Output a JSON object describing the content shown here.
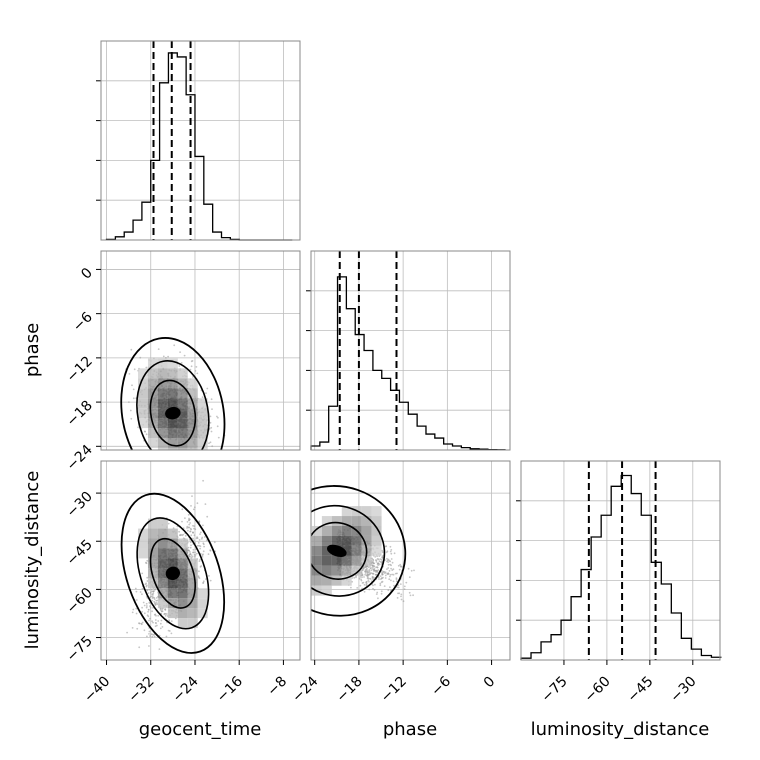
{
  "chart_data": [
    {
      "type": "histogram",
      "panel": "geocent_time",
      "x_ticks": [
        "−40",
        "−32",
        "−24",
        "−16",
        "−8"
      ],
      "x_tick_values": [
        -40,
        -32,
        -24,
        -16,
        -8
      ],
      "xlim": [
        -41,
        -5
      ],
      "quantile_lines": [
        -31.5,
        -28.2,
        -24.8
      ],
      "bin_edges": [
        -40,
        -38.4,
        -36.8,
        -35.2,
        -33.6,
        -32,
        -30.4,
        -28.8,
        -27.2,
        -25.6,
        -24,
        -22.4,
        -20.8,
        -19.2,
        -17.6,
        -16,
        -14.4,
        -12.8,
        -11.2,
        -9.6,
        -8,
        -6.4
      ],
      "counts": [
        0.3,
        1.6,
        4,
        10,
        19,
        40,
        79,
        94,
        92,
        73,
        42,
        18,
        4,
        1.2,
        0.3,
        0,
        0,
        0,
        0,
        0,
        0
      ],
      "ylim": [
        0,
        100
      ],
      "grid": true
    },
    {
      "type": "histogram",
      "panel": "phase",
      "x_ticks": [
        "−24",
        "−18",
        "−12",
        "−6",
        "0"
      ],
      "x_tick_values": [
        -24,
        -18,
        -12,
        -6,
        0
      ],
      "xlim": [
        -24.5,
        2.5
      ],
      "quantile_lines": [
        -20.6,
        -18.0,
        -12.9
      ],
      "bin_edges": [
        -24.5,
        -23.3,
        -22.1,
        -20.9,
        -19.7,
        -18.5,
        -17.3,
        -16.1,
        -14.9,
        -13.7,
        -12.5,
        -11.3,
        -10.1,
        -8.9,
        -7.7,
        -6.5,
        -5.3,
        -4.1,
        -2.9,
        -1.7,
        -0.5,
        0.7,
        1.9
      ],
      "counts": [
        2,
        4,
        22,
        87,
        71,
        58,
        50,
        40,
        36,
        30,
        24,
        18,
        12,
        8,
        6,
        3,
        2,
        1.2,
        0.6,
        0.4,
        0.2,
        0.1
      ],
      "ylim": [
        0,
        100
      ],
      "grid": true
    },
    {
      "type": "histogram",
      "panel": "luminosity_distance",
      "x_ticks": [
        "−75",
        "−60",
        "−45",
        "−30"
      ],
      "x_tick_values": [
        -75,
        -60,
        -45,
        -30
      ],
      "xlim": [
        -90,
        -20.5
      ],
      "quantile_lines": [
        -66.3,
        -54.7,
        -43.0
      ],
      "bin_edges": [
        -90,
        -86.5,
        -83,
        -79.5,
        -76,
        -72.5,
        -69,
        -65.5,
        -62,
        -58.5,
        -55,
        -51.5,
        -48,
        -44.5,
        -41,
        -37.5,
        -34,
        -30.5,
        -27,
        -23.5,
        -20
      ],
      "counts": [
        1,
        4,
        10,
        14,
        22,
        35,
        50,
        68,
        80,
        96,
        102,
        92,
        80,
        54,
        42,
        26,
        12,
        6,
        2.5,
        1.5
      ],
      "ylim": [
        0,
        110
      ],
      "grid": true
    },
    {
      "type": "2d-histogram-contour",
      "x": "geocent_time",
      "y": "phase",
      "x_tick_values": [
        -40,
        -32,
        -24,
        -16,
        -8
      ],
      "y_ticks": [
        "0",
        "−6",
        "−12",
        "−18",
        "−24"
      ],
      "y_tick_values": [
        0,
        -6,
        -12,
        -18,
        -24
      ],
      "xlim": [
        -41,
        -5
      ],
      "ylim": [
        -24.5,
        2.5
      ],
      "ylabel": "phase",
      "center": [
        -28,
        -19.5
      ],
      "grid": true
    },
    {
      "type": "2d-histogram-contour",
      "x": "geocent_time",
      "y": "luminosity_distance",
      "x_tick_values": [
        -40,
        -32,
        -24,
        -16,
        -8
      ],
      "y_ticks": [
        "−30",
        "−45",
        "−60",
        "−75"
      ],
      "y_tick_values": [
        -30,
        -45,
        -60,
        -75
      ],
      "xlim": [
        -41,
        -5
      ],
      "ylim": [
        -82,
        -20
      ],
      "ylabel": "luminosity_distance",
      "center": [
        -28,
        -55
      ],
      "grid": true
    },
    {
      "type": "2d-histogram-contour",
      "x": "phase",
      "y": "luminosity_distance",
      "x_tick_values": [
        -24,
        -18,
        -12,
        -6,
        0
      ],
      "y_tick_values": [
        -30,
        -45,
        -60,
        -75
      ],
      "xlim": [
        -24.5,
        2.5
      ],
      "ylim": [
        -82,
        -20
      ],
      "center": [
        -21,
        -48
      ],
      "grid": true
    }
  ],
  "axis_labels": {
    "x": [
      "geocent_time",
      "phase",
      "luminosity_distance"
    ],
    "y": [
      "phase",
      "luminosity_distance"
    ]
  }
}
